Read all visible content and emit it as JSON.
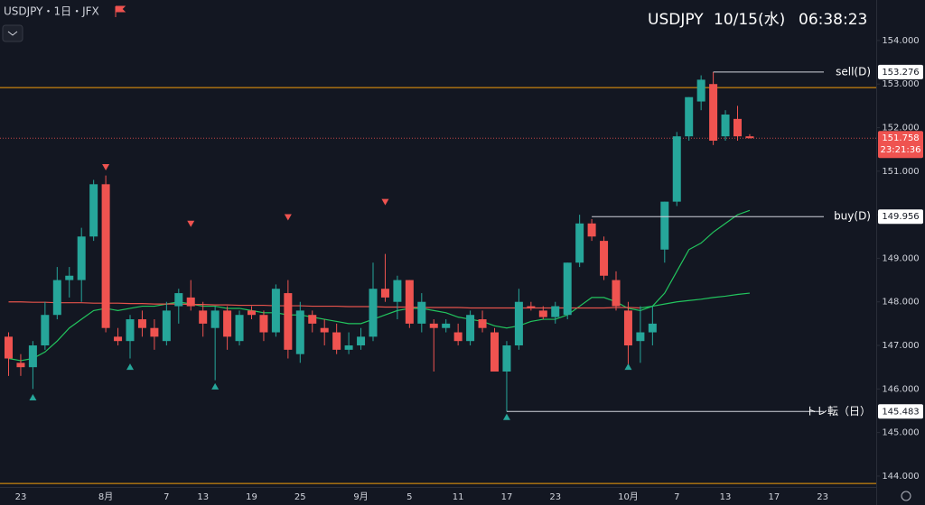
{
  "header": {
    "title": "USDJPY・1日・JFX",
    "symbol": "USDJPY",
    "date": "10/15(水)",
    "time": "06:38:23"
  },
  "chart_data": {
    "type": "candlestick",
    "categories": [
      null,
      "23",
      null,
      null,
      null,
      null,
      null,
      null,
      "8月",
      null,
      null,
      null,
      null,
      "7",
      null,
      null,
      "13",
      null,
      null,
      null,
      "19",
      null,
      null,
      null,
      "25",
      null,
      null,
      null,
      null,
      "9月",
      null,
      null,
      null,
      "5",
      null,
      null,
      null,
      "11",
      null,
      null,
      null,
      "17",
      null,
      null,
      null,
      "23",
      null,
      null,
      null,
      null,
      null,
      "10月",
      null,
      null,
      null,
      "7",
      null,
      null,
      null,
      "13",
      null,
      null,
      null,
      "17",
      null,
      null,
      null,
      "23"
    ],
    "open": [
      147.2,
      146.6,
      146.5,
      147.0,
      147.7,
      148.5,
      148.5,
      149.5,
      150.7,
      147.2,
      147.1,
      147.6,
      147.4,
      147.1,
      147.9,
      148.1,
      147.8,
      147.4,
      147.8,
      147.1,
      147.8,
      147.7,
      147.3,
      148.2,
      146.8,
      147.7,
      147.4,
      147.3,
      146.9,
      147.0,
      147.2,
      148.3,
      148.0,
      148.5,
      147.5,
      147.5,
      147.4,
      147.3,
      147.1,
      147.6,
      147.3,
      146.4,
      147.0,
      147.9,
      147.8,
      147.65,
      147.7,
      148.9,
      149.8,
      149.4,
      148.5,
      147.8,
      147.1,
      147.3,
      149.2,
      150.3,
      151.8,
      152.6,
      153.0,
      151.8,
      152.2,
      151.8,
      null,
      null,
      null,
      null,
      null,
      null
    ],
    "high": [
      147.3,
      146.8,
      147.1,
      148.0,
      148.8,
      148.8,
      149.7,
      150.8,
      150.9,
      147.4,
      147.7,
      147.8,
      147.6,
      148.0,
      148.3,
      148.5,
      148.0,
      147.9,
      147.9,
      147.8,
      147.9,
      147.8,
      148.4,
      148.5,
      148.0,
      147.8,
      147.6,
      147.5,
      147.3,
      147.4,
      148.9,
      149.1,
      148.6,
      148.5,
      148.2,
      147.6,
      147.6,
      147.5,
      147.8,
      147.8,
      147.4,
      147.1,
      148.3,
      148.0,
      147.9,
      148.0,
      148.9,
      150.0,
      149.9,
      149.5,
      148.7,
      148.0,
      147.9,
      147.9,
      150.3,
      151.9,
      152.7,
      153.2,
      153.276,
      152.4,
      152.5,
      151.85,
      null,
      null,
      null,
      null,
      null,
      null
    ],
    "low": [
      146.3,
      146.3,
      146.0,
      146.9,
      147.6,
      148.1,
      148.0,
      149.4,
      147.3,
      147.0,
      146.7,
      147.2,
      146.9,
      147.0,
      147.5,
      147.8,
      147.2,
      146.2,
      146.9,
      147.0,
      147.6,
      147.1,
      147.2,
      146.7,
      146.6,
      147.3,
      147.0,
      146.8,
      146.8,
      146.9,
      147.1,
      148.0,
      147.6,
      147.4,
      147.3,
      146.4,
      147.3,
      147.0,
      147.0,
      147.3,
      146.4,
      145.483,
      146.9,
      147.8,
      147.6,
      147.5,
      147.6,
      148.8,
      149.4,
      148.5,
      147.8,
      146.5,
      146.6,
      147.0,
      148.9,
      150.2,
      151.7,
      152.4,
      151.6,
      151.7,
      151.7,
      151.75,
      null,
      null,
      null,
      null,
      null,
      null
    ],
    "close": [
      146.7,
      146.5,
      147.0,
      147.7,
      148.5,
      148.6,
      149.5,
      150.7,
      147.4,
      147.1,
      147.6,
      147.4,
      147.2,
      147.8,
      148.2,
      147.9,
      147.5,
      147.8,
      147.2,
      147.7,
      147.7,
      147.3,
      148.3,
      146.9,
      147.8,
      147.5,
      147.3,
      146.9,
      147.0,
      147.2,
      148.3,
      148.1,
      148.5,
      147.5,
      148.0,
      147.4,
      147.5,
      147.1,
      147.7,
      147.4,
      146.4,
      147.0,
      148.0,
      147.85,
      147.65,
      147.9,
      148.9,
      149.8,
      149.5,
      148.6,
      147.9,
      147.0,
      147.3,
      147.5,
      150.3,
      151.8,
      152.7,
      153.1,
      151.7,
      152.3,
      151.8,
      151.758,
      null,
      null,
      null,
      null,
      null,
      null
    ],
    "up_color": "#26a69a",
    "down_color": "#ef5350",
    "lines": [
      {
        "color": "#22c55e",
        "values": [
          146.7,
          146.65,
          146.7,
          146.85,
          147.1,
          147.4,
          147.6,
          147.8,
          147.85,
          147.8,
          147.85,
          147.9,
          147.9,
          147.95,
          148.0,
          147.95,
          147.9,
          147.9,
          147.85,
          147.85,
          147.8,
          147.75,
          147.75,
          147.7,
          147.7,
          147.65,
          147.6,
          147.55,
          147.5,
          147.5,
          147.6,
          147.7,
          147.8,
          147.85,
          147.85,
          147.8,
          147.75,
          147.65,
          147.6,
          147.55,
          147.45,
          147.4,
          147.45,
          147.55,
          147.6,
          147.6,
          147.7,
          147.9,
          148.1,
          148.1,
          148.0,
          147.85,
          147.8,
          147.9,
          148.2,
          148.7,
          149.2,
          149.35,
          149.6,
          149.8,
          150.0,
          150.1,
          null,
          null,
          null,
          null,
          null,
          null
        ]
      },
      {
        "color": "#e5534b",
        "values": [
          148.0,
          148.0,
          147.99,
          147.99,
          147.98,
          147.98,
          147.98,
          147.97,
          147.97,
          147.97,
          147.96,
          147.96,
          147.95,
          147.95,
          147.95,
          147.94,
          147.94,
          147.93,
          147.93,
          147.92,
          147.92,
          147.92,
          147.91,
          147.91,
          147.91,
          147.9,
          147.9,
          147.9,
          147.89,
          147.89,
          147.89,
          147.88,
          147.88,
          147.88,
          147.87,
          147.87,
          147.87,
          147.87,
          147.86,
          147.86,
          147.86,
          147.86,
          147.86,
          147.86,
          147.86,
          147.86,
          147.86,
          147.86,
          147.86,
          147.86,
          147.87,
          147.87,
          147.86,
          null,
          null,
          null,
          null,
          null,
          null,
          null,
          null,
          null,
          null,
          null,
          null,
          null,
          null,
          null
        ]
      },
      {
        "color": "#22c55e",
        "values": [
          null,
          null,
          null,
          null,
          null,
          null,
          null,
          null,
          null,
          null,
          null,
          null,
          null,
          null,
          null,
          null,
          null,
          null,
          null,
          null,
          null,
          null,
          null,
          null,
          null,
          null,
          null,
          null,
          null,
          null,
          null,
          null,
          null,
          null,
          null,
          null,
          null,
          null,
          null,
          null,
          null,
          null,
          null,
          null,
          null,
          null,
          null,
          null,
          null,
          null,
          null,
          null,
          147.86,
          147.9,
          147.95,
          148.0,
          148.03,
          148.06,
          148.1,
          148.13,
          148.17,
          148.2,
          null,
          null,
          null,
          null,
          null,
          null
        ]
      }
    ],
    "signals_up": [
      null,
      null,
      145.8,
      null,
      null,
      null,
      null,
      null,
      null,
      null,
      146.5,
      null,
      null,
      null,
      null,
      null,
      null,
      146.05,
      null,
      null,
      null,
      null,
      null,
      null,
      null,
      null,
      null,
      null,
      null,
      null,
      null,
      null,
      null,
      null,
      null,
      null,
      null,
      null,
      null,
      null,
      null,
      145.35,
      null,
      null,
      null,
      null,
      null,
      null,
      null,
      null,
      null,
      146.5,
      null,
      null,
      null,
      null,
      null,
      null,
      null,
      null,
      null,
      null,
      null,
      null,
      null,
      null,
      null,
      null
    ],
    "signals_down": [
      null,
      null,
      null,
      null,
      null,
      null,
      null,
      null,
      151.1,
      null,
      null,
      null,
      null,
      null,
      null,
      149.8,
      null,
      null,
      null,
      null,
      null,
      null,
      null,
      149.95,
      null,
      null,
      null,
      null,
      null,
      null,
      null,
      150.3,
      null,
      null,
      null,
      null,
      null,
      null,
      null,
      null,
      null,
      null,
      null,
      null,
      null,
      null,
      null,
      null,
      null,
      null,
      null,
      null,
      null,
      null,
      null,
      null,
      null,
      null,
      null,
      null,
      null,
      null,
      null,
      null,
      null,
      null,
      null,
      null
    ],
    "levels": [
      {
        "label": "sell(D)",
        "value": 153.276,
        "from": 58
      },
      {
        "label": "buy(D)",
        "value": 149.956,
        "from": 48
      },
      {
        "label": "トレ転（日）",
        "value": 145.483,
        "from": 41
      }
    ],
    "hlines": [
      152.92,
      143.83
    ],
    "hline_color": "#f59e0b",
    "last_price": 151.758,
    "countdown": "23:21:36",
    "ylim": [
      143.75,
      154.93
    ],
    "yticks": [
      {
        "value": 154,
        "label": "154.000"
      },
      {
        "value": 153,
        "label": "153.000"
      },
      {
        "value": 152,
        "label": "152.000"
      },
      {
        "value": 151,
        "label": "151.000"
      },
      {
        "value": 150,
        "label": "150.000"
      },
      {
        "value": 149,
        "label": "149.000"
      },
      {
        "value": 148,
        "label": "148.000"
      },
      {
        "value": 147,
        "label": "147.000"
      },
      {
        "value": 146,
        "label": "146.000"
      },
      {
        "value": 145,
        "label": "145.000"
      },
      {
        "value": 144,
        "label": "144.000"
      }
    ],
    "grid": false
  }
}
